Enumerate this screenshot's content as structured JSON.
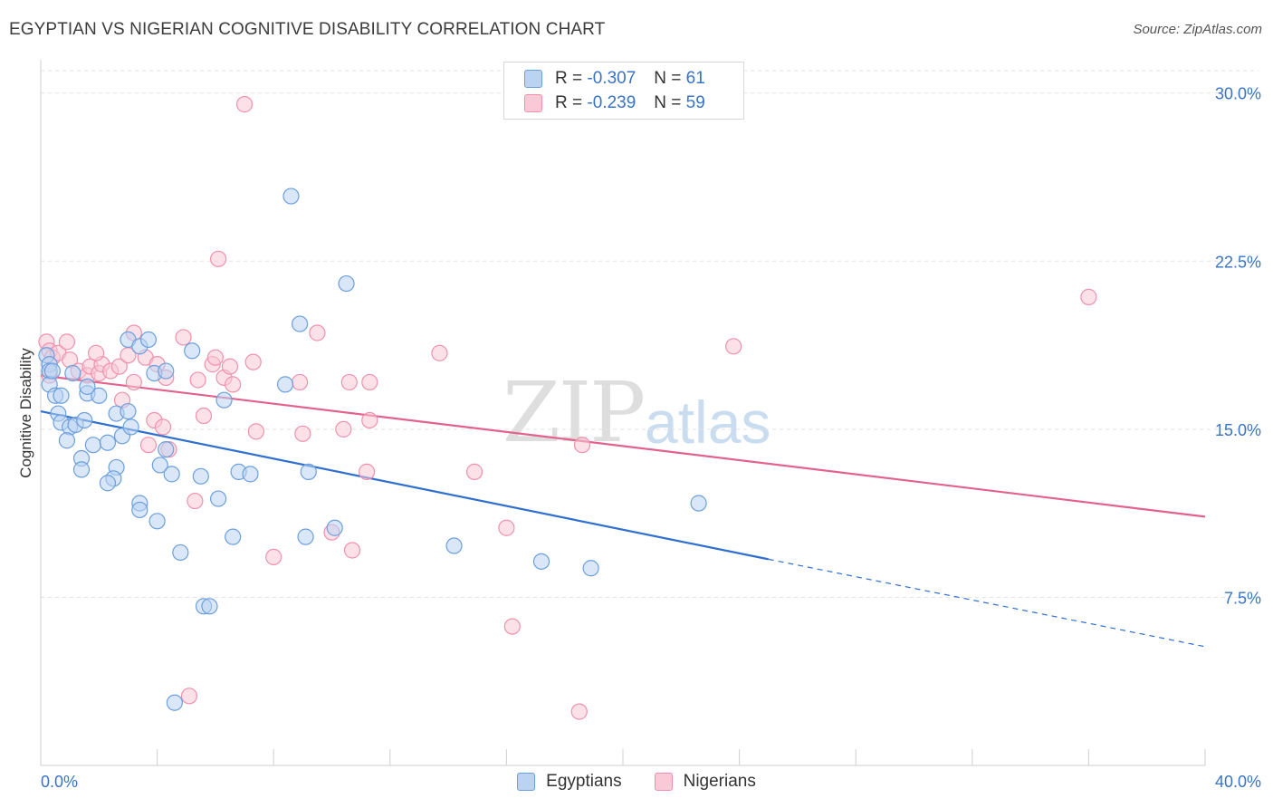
{
  "header": {
    "title": "EGYPTIAN VS NIGERIAN COGNITIVE DISABILITY CORRELATION CHART",
    "source": "Source: ZipAtlas.com"
  },
  "legend": {
    "egyptians": {
      "r_label": "R =",
      "r_value": "-0.307",
      "n_label": "N =",
      "n_value": "61"
    },
    "nigerians": {
      "r_label": "R =",
      "r_value": "-0.239",
      "n_label": "N =",
      "n_value": "59"
    }
  },
  "bottom_legend": {
    "egyptians": "Egyptians",
    "nigerians": "Nigerians"
  },
  "watermark": {
    "zip": "ZIP",
    "atlas": "atlas"
  },
  "colors": {
    "egyptians_fill": "#b9d3f3",
    "egyptians_stroke": "#6c9fdc",
    "egyptians_line": "#2e6fd0",
    "nigerians_fill": "#f9c9d7",
    "nigerians_stroke": "#ef91ad",
    "nigerians_line": "#e2628c",
    "tick": "#3a73c4",
    "grid": "#e3e3e3"
  },
  "chart_data": {
    "type": "scatter",
    "title": "EGYPTIAN VS NIGERIAN COGNITIVE DISABILITY CORRELATION CHART",
    "xlabel": "",
    "ylabel": "Cognitive Disability",
    "xlim": [
      0,
      40
    ],
    "ylim": [
      0,
      31
    ],
    "x_tick_labels": [
      "0.0%",
      "40.0%"
    ],
    "y_ticks": [
      7.5,
      15.0,
      22.5,
      30.0
    ],
    "y_tick_labels": [
      "7.5%",
      "15.0%",
      "22.5%",
      "30.0%"
    ],
    "grid": "horizontal dashed",
    "legend_position": "top-center",
    "series": [
      {
        "name": "Egyptians",
        "points": [
          [
            0.2,
            18.3
          ],
          [
            0.3,
            17.9
          ],
          [
            0.3,
            17.6
          ],
          [
            0.3,
            17.0
          ],
          [
            0.5,
            16.5
          ],
          [
            0.7,
            16.5
          ],
          [
            0.6,
            15.7
          ],
          [
            0.7,
            15.3
          ],
          [
            1.0,
            15.1
          ],
          [
            1.2,
            15.2
          ],
          [
            1.5,
            15.4
          ],
          [
            1.6,
            16.6
          ],
          [
            2.0,
            16.5
          ],
          [
            1.1,
            17.5
          ],
          [
            1.6,
            16.9
          ],
          [
            0.9,
            14.5
          ],
          [
            1.8,
            14.3
          ],
          [
            2.3,
            14.4
          ],
          [
            2.8,
            14.7
          ],
          [
            3.1,
            15.1
          ],
          [
            2.6,
            15.7
          ],
          [
            3.0,
            15.8
          ],
          [
            3.0,
            19.0
          ],
          [
            3.4,
            18.7
          ],
          [
            3.7,
            19.0
          ],
          [
            3.9,
            17.5
          ],
          [
            4.3,
            17.6
          ],
          [
            5.2,
            18.5
          ],
          [
            4.1,
            13.4
          ],
          [
            4.3,
            14.1
          ],
          [
            4.5,
            13.0
          ],
          [
            1.4,
            13.7
          ],
          [
            1.4,
            13.2
          ],
          [
            2.6,
            13.3
          ],
          [
            2.5,
            12.8
          ],
          [
            2.3,
            12.6
          ],
          [
            3.4,
            11.7
          ],
          [
            3.4,
            11.4
          ],
          [
            4.0,
            10.9
          ],
          [
            5.5,
            12.9
          ],
          [
            6.1,
            11.9
          ],
          [
            6.3,
            16.3
          ],
          [
            6.6,
            10.2
          ],
          [
            6.8,
            13.1
          ],
          [
            7.2,
            13.0
          ],
          [
            8.4,
            17.0
          ],
          [
            8.6,
            25.4
          ],
          [
            8.9,
            19.7
          ],
          [
            9.1,
            10.2
          ],
          [
            9.2,
            13.1
          ],
          [
            10.1,
            10.6
          ],
          [
            10.5,
            21.5
          ],
          [
            14.2,
            9.8
          ],
          [
            17.2,
            9.1
          ],
          [
            18.9,
            8.8
          ],
          [
            22.6,
            11.7
          ],
          [
            4.8,
            9.5
          ],
          [
            5.6,
            7.1
          ],
          [
            5.8,
            7.1
          ],
          [
            4.6,
            2.8
          ],
          [
            0.4,
            17.6
          ]
        ]
      },
      {
        "name": "Nigerians",
        "points": [
          [
            0.2,
            18.9
          ],
          [
            0.3,
            18.5
          ],
          [
            0.4,
            18.2
          ],
          [
            0.6,
            18.4
          ],
          [
            0.9,
            18.9
          ],
          [
            1.0,
            18.1
          ],
          [
            1.3,
            17.6
          ],
          [
            1.6,
            17.4
          ],
          [
            1.7,
            17.8
          ],
          [
            2.0,
            17.5
          ],
          [
            2.1,
            17.9
          ],
          [
            1.9,
            18.4
          ],
          [
            2.4,
            17.6
          ],
          [
            2.7,
            17.8
          ],
          [
            3.0,
            18.3
          ],
          [
            3.2,
            19.3
          ],
          [
            3.6,
            18.2
          ],
          [
            4.0,
            17.9
          ],
          [
            4.3,
            17.3
          ],
          [
            4.9,
            19.1
          ],
          [
            5.4,
            17.2
          ],
          [
            5.9,
            17.9
          ],
          [
            6.0,
            18.2
          ],
          [
            6.3,
            17.3
          ],
          [
            6.5,
            17.8
          ],
          [
            6.6,
            17.0
          ],
          [
            7.3,
            18.0
          ],
          [
            3.2,
            17.1
          ],
          [
            2.8,
            16.3
          ],
          [
            3.9,
            15.4
          ],
          [
            4.2,
            15.1
          ],
          [
            4.4,
            14.1
          ],
          [
            3.7,
            14.3
          ],
          [
            5.6,
            15.6
          ],
          [
            7.4,
            14.9
          ],
          [
            9.0,
            14.8
          ],
          [
            10.4,
            15.0
          ],
          [
            10.6,
            17.1
          ],
          [
            9.5,
            19.3
          ],
          [
            11.2,
            13.1
          ],
          [
            11.3,
            17.1
          ],
          [
            11.3,
            15.4
          ],
          [
            13.7,
            18.4
          ],
          [
            14.9,
            13.1
          ],
          [
            16.0,
            10.6
          ],
          [
            18.6,
            14.3
          ],
          [
            23.8,
            18.7
          ],
          [
            36.0,
            20.9
          ],
          [
            6.1,
            22.6
          ],
          [
            7.0,
            29.5
          ],
          [
            5.3,
            11.8
          ],
          [
            8.0,
            9.3
          ],
          [
            10.0,
            10.4
          ],
          [
            10.7,
            9.6
          ],
          [
            16.2,
            6.2
          ],
          [
            18.5,
            2.4
          ],
          [
            5.1,
            3.1
          ],
          [
            0.3,
            17.4
          ],
          [
            8.9,
            17.1
          ]
        ]
      }
    ],
    "trendlines": [
      {
        "series": "Egyptians",
        "x": [
          0,
          25
        ],
        "y": [
          15.8,
          9.2
        ],
        "dashed_to": [
          40,
          5.3
        ]
      },
      {
        "series": "Nigerians",
        "x": [
          0,
          40
        ],
        "y": [
          17.4,
          11.1
        ]
      }
    ]
  }
}
